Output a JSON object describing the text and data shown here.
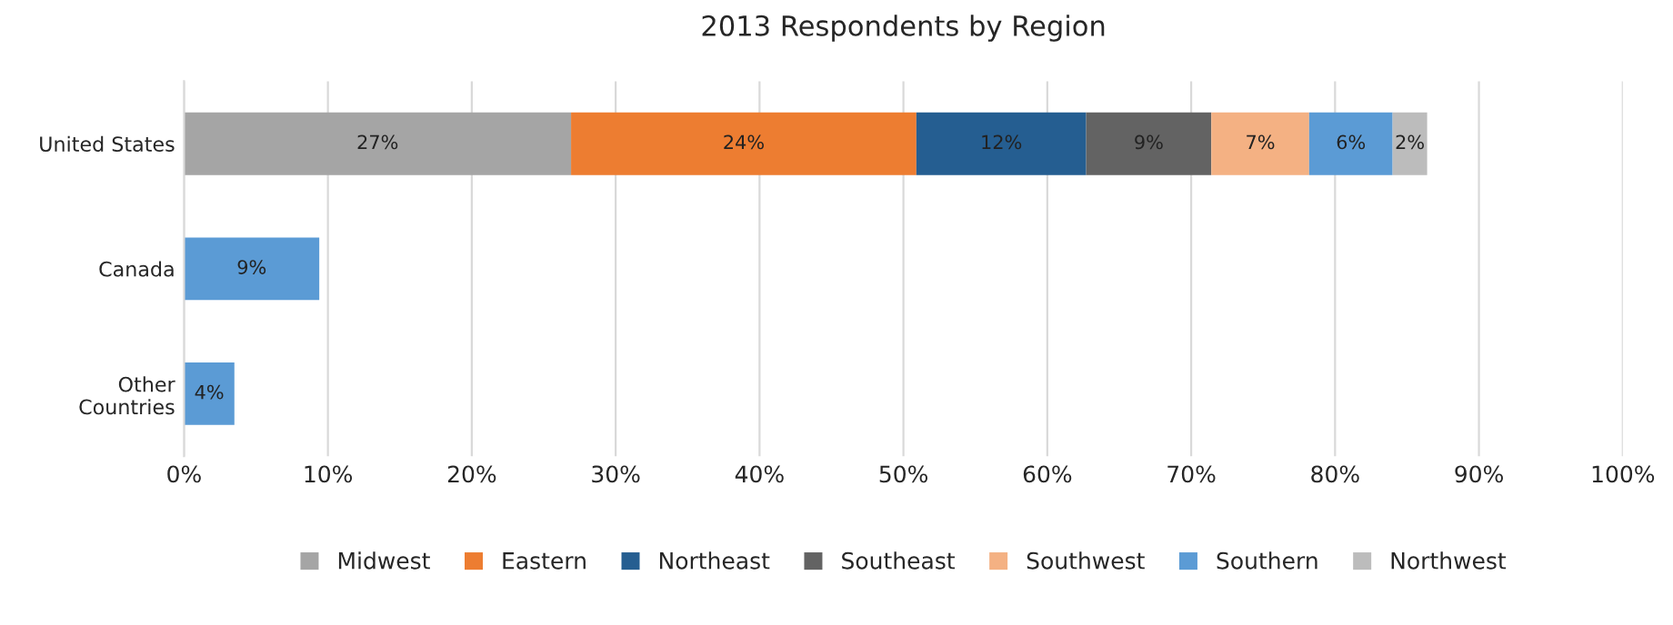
{
  "chart_data": {
    "type": "bar",
    "title": "2013 Respondents by Region",
    "orientation": "horizontal",
    "stacked": true,
    "categories": [
      "United States",
      "Canada",
      "Other\nCountries"
    ],
    "series": [
      {
        "name": "Midwest",
        "color": "#a5a5a5",
        "values": [
          26.9,
          null,
          null
        ],
        "value_labels": [
          "27%",
          null,
          null
        ]
      },
      {
        "name": "Eastern",
        "color": "#ed7d31",
        "values": [
          24.0,
          null,
          null
        ],
        "value_labels": [
          "24%",
          null,
          null
        ]
      },
      {
        "name": "Northeast",
        "color": "#255e91",
        "values": [
          11.8,
          null,
          null
        ],
        "value_labels": [
          "12%",
          null,
          null
        ]
      },
      {
        "name": "Southeast",
        "color": "#636363",
        "values": [
          8.7,
          null,
          null
        ],
        "value_labels": [
          "9%",
          null,
          null
        ]
      },
      {
        "name": "Southwest",
        "color": "#f4b183",
        "values": [
          6.8,
          null,
          null
        ],
        "value_labels": [
          "7%",
          null,
          null
        ]
      },
      {
        "name": "Southern",
        "color": "#5b9bd5",
        "values": [
          5.8,
          9.4,
          3.5
        ],
        "value_labels": [
          "6%",
          "9%",
          "4%"
        ]
      },
      {
        "name": "Northwest",
        "color": "#bcbcbc",
        "values": [
          2.4,
          null,
          null
        ],
        "value_labels": [
          "2%",
          null,
          null
        ]
      }
    ],
    "xlim": [
      0,
      100
    ],
    "xticks": [
      {
        "value": 0,
        "label": "0%"
      },
      {
        "value": 10,
        "label": "10%"
      },
      {
        "value": 20,
        "label": "20%"
      },
      {
        "value": 30,
        "label": "30%"
      },
      {
        "value": 40,
        "label": "40%"
      },
      {
        "value": 50,
        "label": "50%"
      },
      {
        "value": 60,
        "label": "60%"
      },
      {
        "value": 70,
        "label": "70%"
      },
      {
        "value": 80,
        "label": "80%"
      },
      {
        "value": 90,
        "label": "90%"
      },
      {
        "value": 100,
        "label": "100%"
      }
    ],
    "grid": "x",
    "legend": "bottom"
  }
}
